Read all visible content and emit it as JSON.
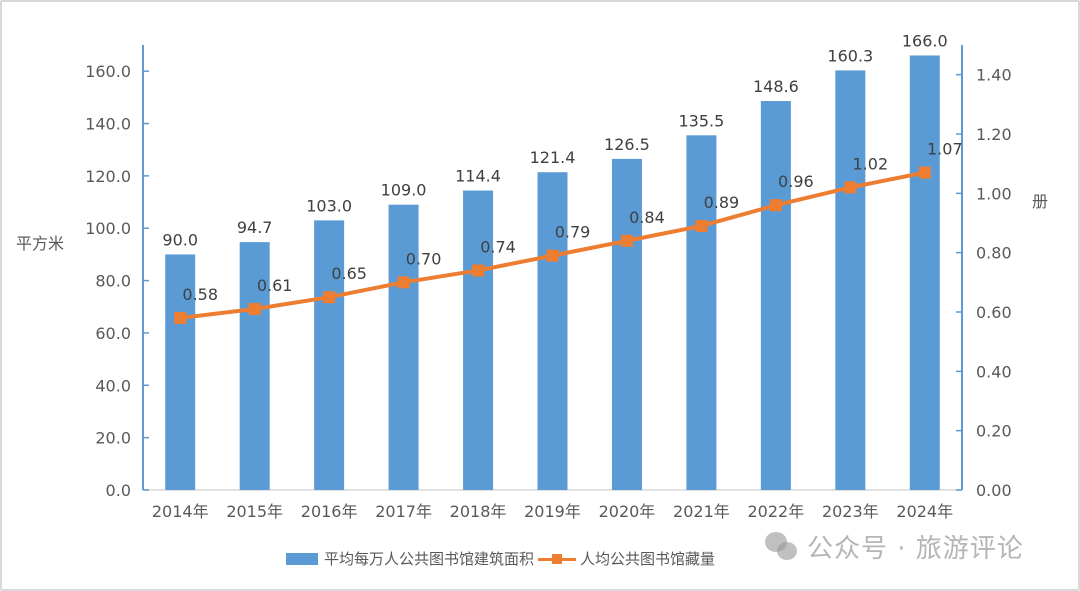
{
  "chart_data": {
    "type": "bar+line",
    "categories": [
      "2014年",
      "2015年",
      "2016年",
      "2017年",
      "2018年",
      "2019年",
      "2020年",
      "2021年",
      "2022年",
      "2023年",
      "2024年"
    ],
    "series": [
      {
        "name": "平均每万人公共图书馆建筑面积",
        "type": "bar",
        "axis": "left",
        "color": "#5b9bd5",
        "values": [
          90.0,
          94.7,
          103.0,
          109.0,
          114.4,
          121.4,
          126.5,
          135.5,
          148.6,
          160.3,
          166.0
        ],
        "labels": [
          "90.0",
          "94.7",
          "103.0",
          "109.0",
          "114.4",
          "121.4",
          "126.5",
          "135.5",
          "148.6",
          "160.3",
          "166.0"
        ]
      },
      {
        "name": "人均公共图书馆藏量",
        "type": "line",
        "axis": "right",
        "color": "#ed7d31",
        "values": [
          0.58,
          0.61,
          0.65,
          0.7,
          0.74,
          0.79,
          0.84,
          0.89,
          0.96,
          1.02,
          1.07
        ],
        "labels": [
          "0.58",
          "0.61",
          "0.65",
          "0.70",
          "0.74",
          "0.79",
          "0.84",
          "0.89",
          "0.96",
          "1.02",
          "1.07"
        ]
      }
    ],
    "left_axis": {
      "label": "平方米",
      "range": [
        0,
        170
      ],
      "ticks": [
        "0.0",
        "20.0",
        "40.0",
        "60.0",
        "80.0",
        "100.0",
        "120.0",
        "140.0",
        "160.0"
      ]
    },
    "right_axis": {
      "label": "册",
      "range": [
        0,
        1.5
      ],
      "ticks": [
        "0.00",
        "0.20",
        "0.40",
        "0.60",
        "0.80",
        "1.00",
        "1.20",
        "1.40"
      ]
    },
    "grid": false,
    "legend": "bottom"
  },
  "watermark": "公众号 · 旅游评论"
}
